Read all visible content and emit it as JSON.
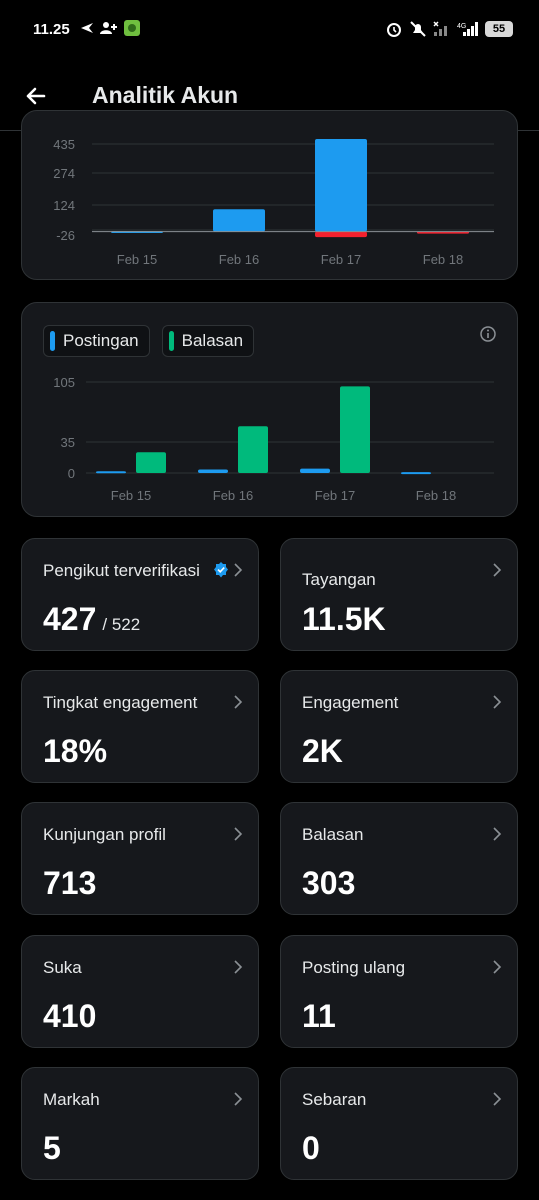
{
  "status": {
    "time": "11.25",
    "battery": "55",
    "network": "4G"
  },
  "header": {
    "title": "Analitik Akun"
  },
  "chart1": {
    "y_ticks": [
      "435",
      "274",
      "124",
      "-26"
    ],
    "x_labels": [
      "Feb 15",
      "Feb 16",
      "Feb 17",
      "Feb 18"
    ]
  },
  "chart2": {
    "legend": [
      {
        "label": "Postingan",
        "color": "#1d9bf0"
      },
      {
        "label": "Balasan",
        "color": "#00ba7c"
      }
    ],
    "y_ticks": [
      "105",
      "35",
      "0"
    ],
    "x_labels": [
      "Feb 15",
      "Feb 16",
      "Feb 17",
      "Feb 18"
    ]
  },
  "chart_data": [
    {
      "type": "bar",
      "categories": [
        "Feb 15",
        "Feb 16",
        "Feb 17",
        "Feb 18"
      ],
      "series": [
        {
          "values": [
            3,
            105,
            435,
            1
          ],
          "color": "#1d9bf0"
        },
        {
          "values": [
            0,
            0,
            -26,
            -4
          ],
          "color": "#f4212e"
        }
      ],
      "ylim": [
        -26,
        435
      ],
      "grid": true
    },
    {
      "type": "bar",
      "categories": [
        "Feb 15",
        "Feb 16",
        "Feb 17",
        "Feb 18"
      ],
      "series": [
        {
          "name": "Postingan",
          "values": [
            2,
            4,
            5,
            1
          ],
          "color": "#1d9bf0"
        },
        {
          "name": "Balasan",
          "values": [
            24,
            54,
            100,
            0
          ],
          "color": "#00ba7c"
        }
      ],
      "ylim": [
        0,
        105
      ],
      "grid": true
    }
  ],
  "stats": [
    {
      "label": "Pengikut terverifikasi",
      "value": "427",
      "sub": "/ 522",
      "verified": true
    },
    {
      "label": "Tayangan",
      "value": "11.5K"
    },
    {
      "label": "Tingkat engagement",
      "value": "18%"
    },
    {
      "label": "Engagement",
      "value": "2K"
    },
    {
      "label": "Kunjungan profil",
      "value": "713"
    },
    {
      "label": "Balasan",
      "value": "303"
    },
    {
      "label": "Suka",
      "value": "410"
    },
    {
      "label": "Posting ulang",
      "value": "11"
    },
    {
      "label": "Markah",
      "value": "5"
    },
    {
      "label": "Sebaran",
      "value": "0"
    }
  ]
}
